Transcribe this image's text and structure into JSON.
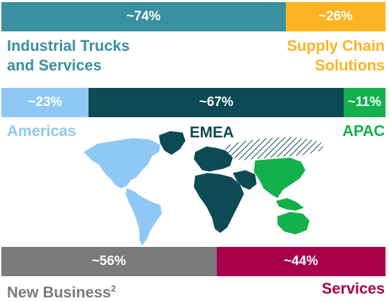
{
  "chart_data": [
    {
      "type": "bar",
      "orientation": "horizontal-stacked",
      "series": [
        {
          "name": "Industrial Trucks and Services",
          "value": 74,
          "label": "~74%",
          "color": "#3a8fa0"
        },
        {
          "name": "Supply Chain Solutions",
          "value": 26,
          "label": "~26%",
          "color": "#fbb422"
        }
      ]
    },
    {
      "type": "bar",
      "orientation": "horizontal-stacked",
      "series": [
        {
          "name": "Americas",
          "value": 23,
          "label": "~23%",
          "color": "#8ec8f4"
        },
        {
          "name": "EMEA",
          "value": 67,
          "label": "~67%",
          "color": "#0d4a55"
        },
        {
          "name": "APAC",
          "value": 11,
          "label": "~11%",
          "color": "#14b04c"
        }
      ]
    },
    {
      "type": "bar",
      "orientation": "horizontal-stacked",
      "series": [
        {
          "name": "New Business",
          "value": 56,
          "label": "~56%",
          "color": "#7a7a7a"
        },
        {
          "name": "Services",
          "value": 44,
          "label": "~44%",
          "color": "#a8004a"
        }
      ]
    }
  ],
  "labels": {
    "row1_left": [
      "Industrial Trucks",
      "and Services"
    ],
    "row1_right": [
      "Supply Chain",
      "Solutions"
    ],
    "americas": "Americas",
    "emea": "EMEA",
    "apac": "APAC",
    "new_business": "New Business",
    "new_business_footnote": "2",
    "services": "Services"
  }
}
